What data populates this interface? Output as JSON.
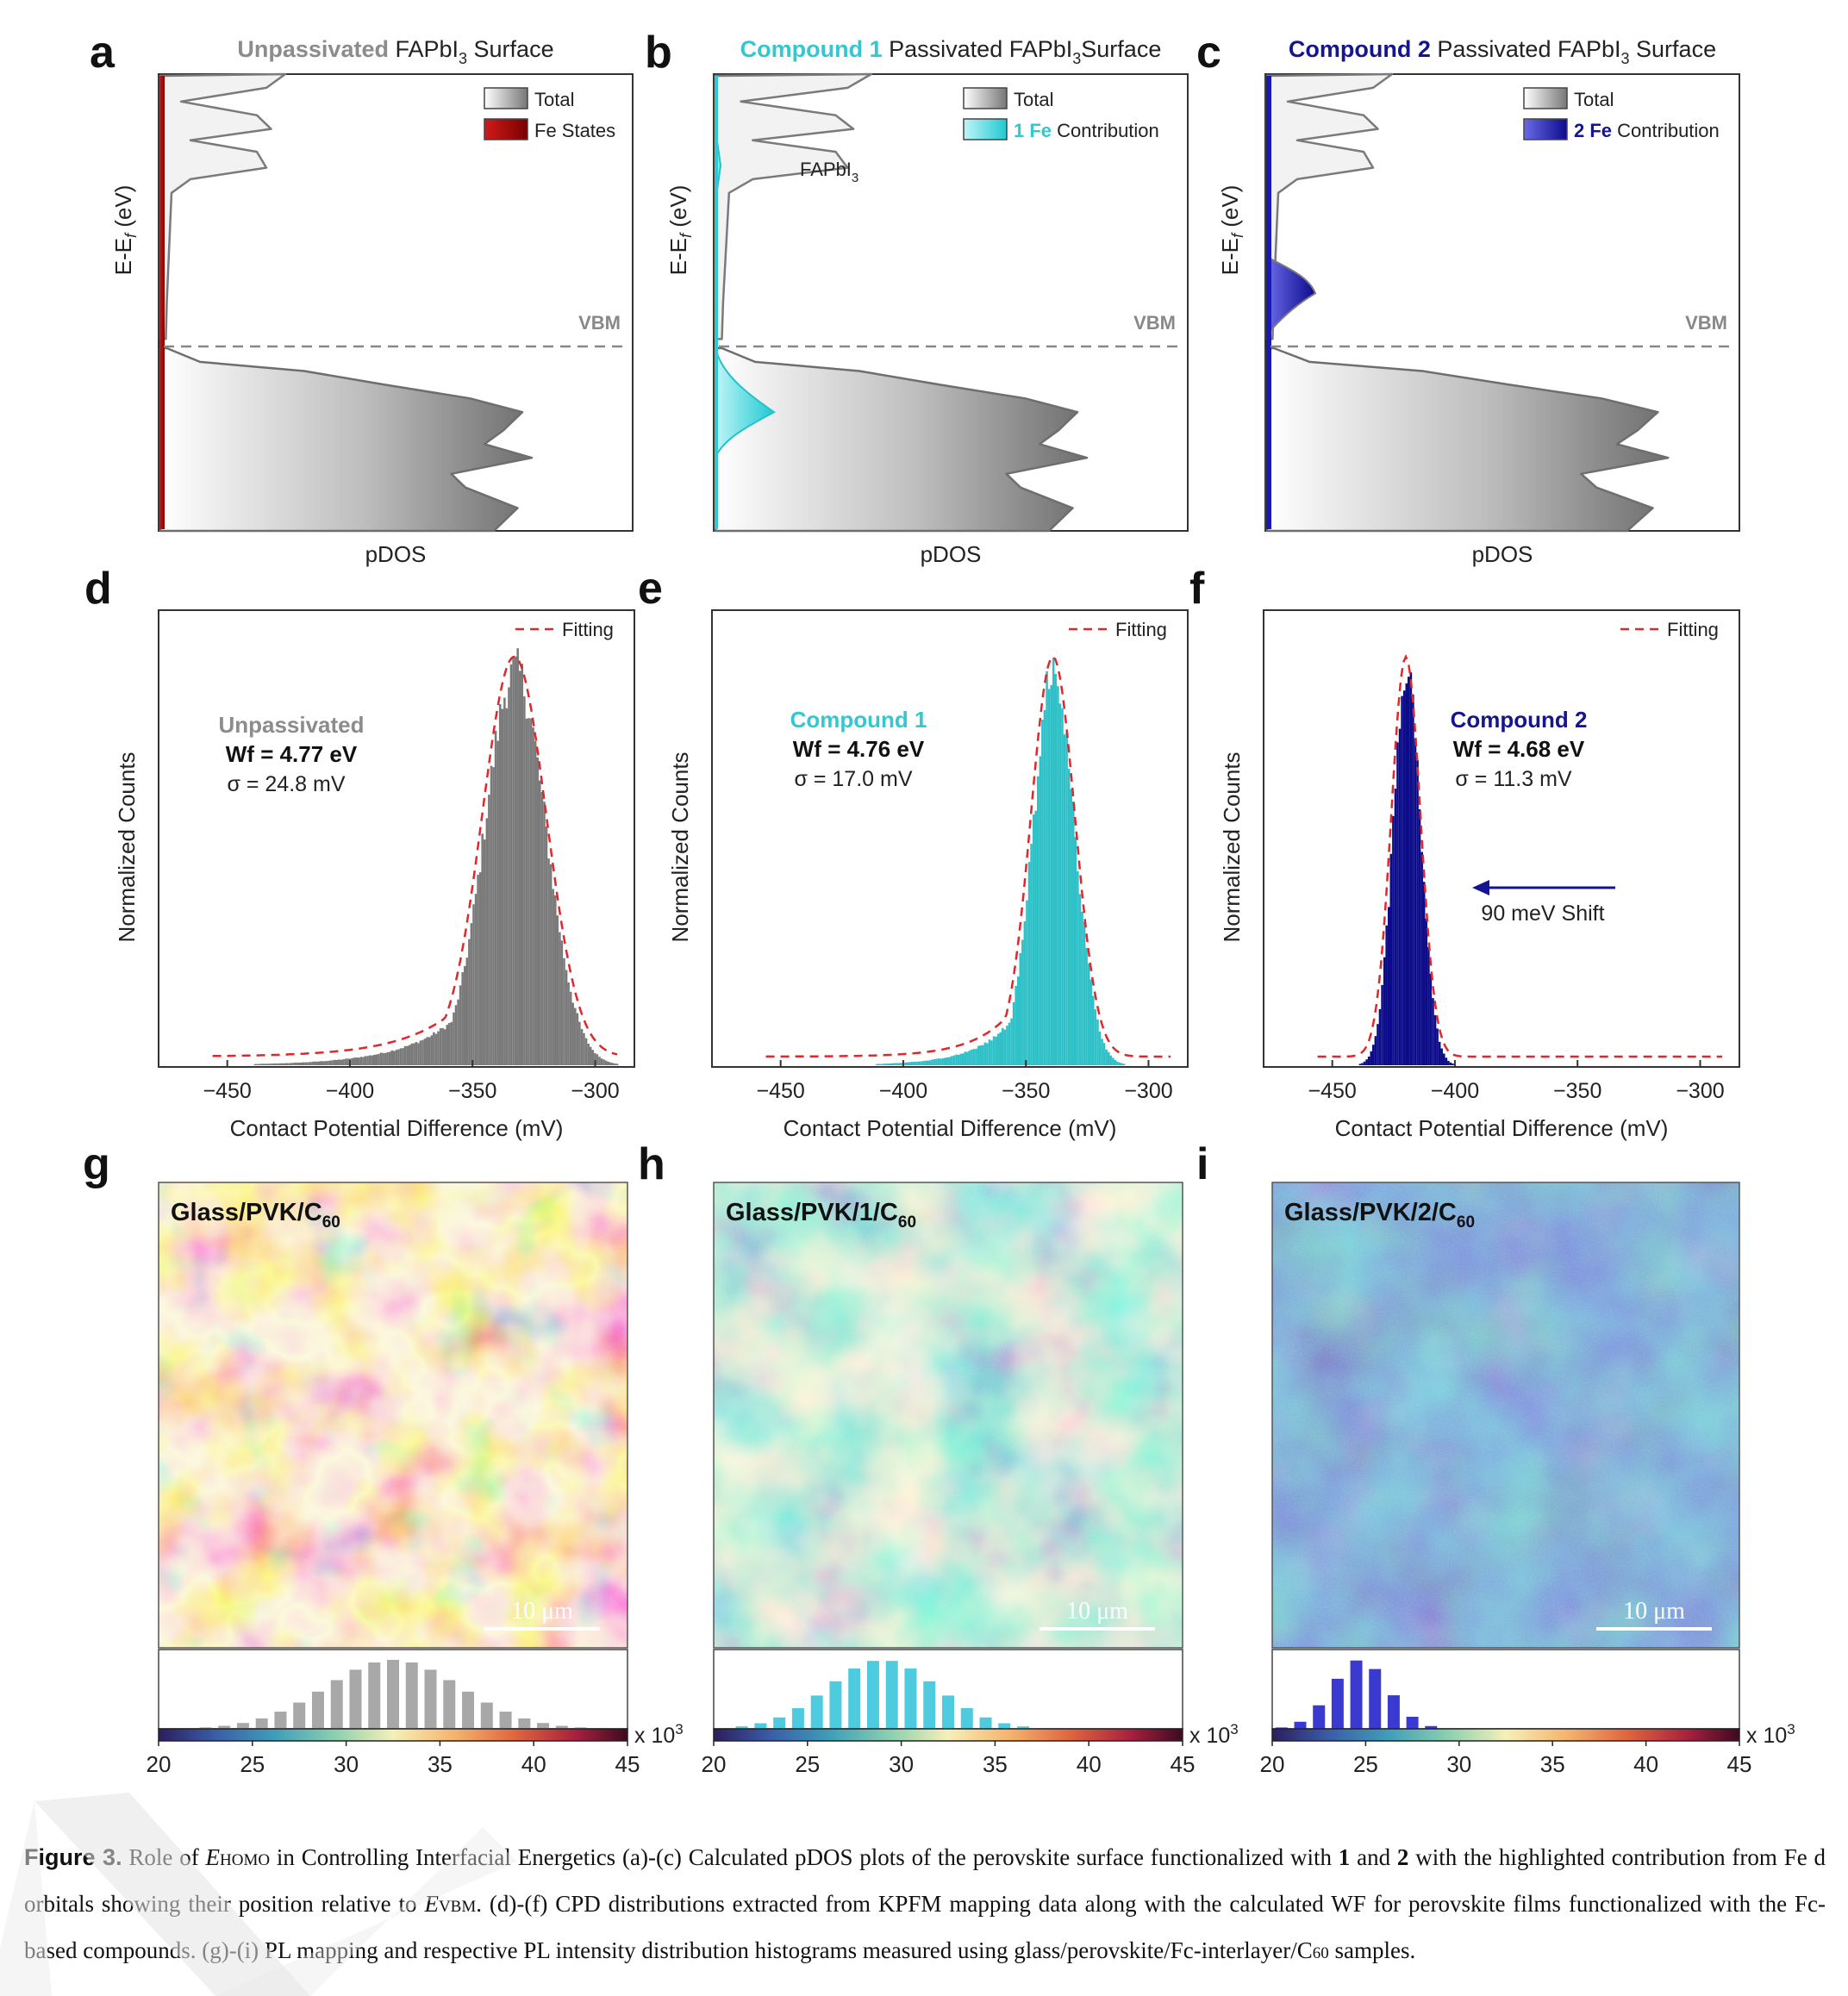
{
  "figure": {
    "panels": {
      "a": {
        "letter": "a",
        "title_hl": "Unpassivated",
        "title_rest": "FAPbI",
        "title_sub": "3",
        "title_end": " Surface",
        "hl_color": "#8c8c8c",
        "legend_total": "Total",
        "legend_hl": "",
        "legend_fe": "Fe States",
        "fe_color": "#b30000",
        "vbm": "VBM",
        "ylabel": "E-E",
        "ylabel_sub": "f",
        "ylabel_end": " (eV)",
        "xlabel": "pDOS"
      },
      "b": {
        "letter": "b",
        "title_hl": "Compound 1",
        "title_rest": " Passivated FAPbI",
        "title_sub": "3",
        "title_end": "Surface",
        "hl_color": "#33c8d0",
        "legend_total": "Total",
        "legend_hl": "1 Fe",
        "legend_fe": " Contribution",
        "fe_color": "#5ee0e6",
        "vbm": "VBM",
        "annotation": "FAPbI",
        "annotation_sub": "3",
        "ylabel": "E-E",
        "ylabel_sub": "f",
        "ylabel_end": " (eV)",
        "xlabel": "pDOS"
      },
      "c": {
        "letter": "c",
        "title_hl": "Compound 2",
        "title_rest": " Passivated FAPbI",
        "title_sub": "3",
        "title_end": " Surface",
        "hl_color": "#15158f",
        "legend_total": "Total",
        "legend_hl": "2 Fe",
        "legend_fe": " Contribution",
        "fe_color": "#1a1ab0",
        "vbm": "VBM",
        "ylabel": "E-E",
        "ylabel_sub": "f",
        "ylabel_end": " (eV)",
        "xlabel": "pDOS"
      },
      "d": {
        "letter": "d",
        "legend": "Fitting",
        "name": "Unpassivated",
        "name_color": "#8c8c8c",
        "wf": "Wf = 4.77 eV",
        "sigma": "σ = 24.8 mV",
        "ylabel": "Normalized Counts",
        "xlabel": "Contact Potential Difference (mV)",
        "bar_color": "#7a7a7a"
      },
      "e": {
        "letter": "e",
        "legend": "Fitting",
        "name": "Compound 1",
        "name_color": "#33c8d0",
        "wf": "Wf = 4.76 eV",
        "sigma": "σ = 17.0 mV",
        "ylabel": "Normalized Counts",
        "xlabel": "Contact Potential Difference (mV)",
        "bar_color": "#2fc0c8"
      },
      "f": {
        "letter": "f",
        "legend": "Fitting",
        "name": "Compound 2",
        "name_color": "#15158f",
        "wf": "Wf = 4.68 eV",
        "sigma": "σ = 11.3 mV",
        "ylabel": "Normalized Counts",
        "xlabel": "Contact Potential Difference (mV)",
        "bar_color": "#0c0c8a",
        "shift_label": "90 meV Shift"
      },
      "g": {
        "letter": "g",
        "sample": "Glass/PVK/C",
        "sample_sub": "60",
        "scalebar": "10 μm",
        "hist_color": "#a8a8a8"
      },
      "h": {
        "letter": "h",
        "sample": "Glass/PVK/1/C",
        "sample_sub": "60",
        "scalebar": "10 μm",
        "hist_color": "#4fcbe0"
      },
      "i": {
        "letter": "i",
        "sample": "Glass/PVK/2/C",
        "sample_sub": "60",
        "scalebar": "10 μm",
        "hist_color": "#3a3ad0"
      }
    },
    "colorbar": {
      "unit": "x 10",
      "unit_sup": "3"
    }
  },
  "chart_data": [
    {
      "type": "area",
      "panel": "a",
      "x_label": "pDOS",
      "y_label": "E-E_f (eV)",
      "series": [
        {
          "name": "Total",
          "color": "#7a7a7a"
        },
        {
          "name": "Fe States",
          "color": "#b30000"
        }
      ],
      "reference_line": "VBM"
    },
    {
      "type": "area",
      "panel": "b",
      "x_label": "pDOS",
      "y_label": "E-E_f (eV)",
      "series": [
        {
          "name": "Total",
          "color": "#7a7a7a"
        },
        {
          "name": "1 Fe Contribution",
          "color": "#5ee0e6"
        }
      ],
      "reference_line": "VBM"
    },
    {
      "type": "area",
      "panel": "c",
      "x_label": "pDOS",
      "y_label": "E-E_f (eV)",
      "series": [
        {
          "name": "Total",
          "color": "#7a7a7a"
        },
        {
          "name": "2 Fe Contribution",
          "color": "#1a1ab0"
        }
      ],
      "reference_line": "VBM"
    },
    {
      "type": "bar",
      "panel": "d",
      "x_label": "Contact Potential Difference (mV)",
      "y_label": "Normalized Counts",
      "xlim": [
        -478,
        -284
      ],
      "xticks": [
        -450,
        -400,
        -350,
        -300
      ],
      "xtick_labels": [
        "−450",
        "−400",
        "−350",
        "−300"
      ],
      "peak_center_mV": -333,
      "sigma_mV": 24.8,
      "tail": "left",
      "series": [
        {
          "name": "Fitting",
          "style": "dashed",
          "color": "#e0282a"
        }
      ]
    },
    {
      "type": "bar",
      "panel": "e",
      "x_label": "Contact Potential Difference (mV)",
      "y_label": "Normalized Counts",
      "xlim": [
        -478,
        -284
      ],
      "xticks": [
        -450,
        -400,
        -350,
        -300
      ],
      "xtick_labels": [
        "−450",
        "−400",
        "−350",
        "−300"
      ],
      "peak_center_mV": -339,
      "sigma_mV": 17.0,
      "tail": "left",
      "series": [
        {
          "name": "Fitting",
          "style": "dashed",
          "color": "#e0282a"
        }
      ]
    },
    {
      "type": "bar",
      "panel": "f",
      "x_label": "Contact Potential Difference (mV)",
      "y_label": "Normalized Counts",
      "xlim": [
        -478,
        -284
      ],
      "xticks": [
        -450,
        -400,
        -350,
        -300
      ],
      "xtick_labels": [
        "−450",
        "−400",
        "−350",
        "−300"
      ],
      "peak_center_mV": -420,
      "sigma_mV": 11.3,
      "tail": "none",
      "series": [
        {
          "name": "Fitting",
          "style": "dashed",
          "color": "#e0282a"
        }
      ]
    },
    {
      "type": "heatmap",
      "panel": "g",
      "colorbar_range": [
        20,
        45
      ],
      "colorbar_ticks": [
        "20",
        "25",
        "30",
        "35",
        "40",
        "45"
      ],
      "histogram_center": 32.5,
      "histogram_spread": 3.6
    },
    {
      "type": "heatmap",
      "panel": "h",
      "colorbar_range": [
        20,
        45
      ],
      "colorbar_ticks": [
        "20",
        "25",
        "30",
        "35",
        "40",
        "45"
      ],
      "histogram_center": 29.0,
      "histogram_spread": 2.9
    },
    {
      "type": "heatmap",
      "panel": "i",
      "colorbar_range": [
        20,
        45
      ],
      "colorbar_ticks": [
        "20",
        "25",
        "30",
        "35",
        "40",
        "45"
      ],
      "histogram_center": 24.7,
      "histogram_spread": 1.5
    }
  ],
  "caption": {
    "lead": "Figure 3.",
    "t1": " Role of ",
    "ehomo_e": "E",
    "ehomo_sub": "HOMO",
    "t2": " in Controlling Interfacial Energetics (a)-(c) Calculated pDOS plots of the perovskite surface functionalized with ",
    "b1": "1",
    "t3": " and ",
    "b2": "2",
    "t4": " with the highlighted contribution from Fe d orbitals showing their position relative to ",
    "evbm_e": "E",
    "evbm_sub": "VBM",
    "t5": ". (d)-(f) CPD distributions extracted from KPFM mapping data along with the calculated WF for perovskite films functionalized with the Fc-based compounds. (g)-(i) PL mapping and respective PL intensity distribution histograms measured using glass/perovskite/Fc-interlayer/C",
    "c60_sub": "60",
    "t6": " samples."
  }
}
